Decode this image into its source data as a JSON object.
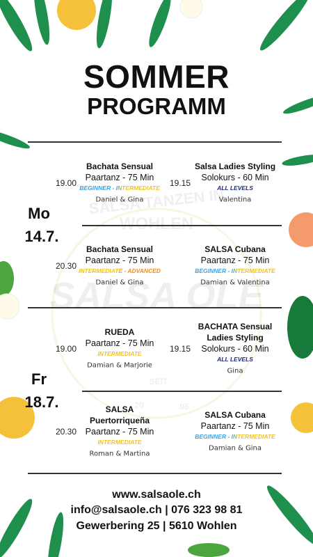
{
  "header": {
    "title": "SOMMER",
    "subtitle": "PROGRAMM"
  },
  "watermark": {
    "top": "SALSA TANZEN IN",
    "middle": "WOHLEN",
    "brand": "SALSA OLE",
    "since": "SEIT",
    "year_left": "20",
    "year_right": "06"
  },
  "schedule": {
    "days": [
      {
        "day": "Mo",
        "date": "14.7.",
        "rows": [
          {
            "slots": [
              {
                "time": "19.00",
                "title": [
                  "Bachata Sensual"
                ],
                "format": "Paartanz - 75 Min",
                "level": "BEGINNER - INTERMEDIATE",
                "level_color": [
                  "#3a9fe3",
                  "#f2c21b"
                ],
                "teachers": "Daniel & Gina"
              },
              {
                "time": "19.15",
                "title": [
                  "Salsa Ladies Styling"
                ],
                "format": "Solokurs - 60 Min",
                "level": "ALL LEVELS",
                "level_color": [
                  "#1b2a7a",
                  "#1b2a7a"
                ],
                "teachers": "Valentina"
              }
            ]
          },
          {
            "slots": [
              {
                "time": "20.30",
                "title": [
                  "Bachata Sensual"
                ],
                "format": "Paartanz - 75 Min",
                "level": "INTERMEDIATE - ADVANCED",
                "level_color": [
                  "#f2c21b",
                  "#f08a1c"
                ],
                "teachers": "Daniel & Gina"
              },
              {
                "time": null,
                "title": [
                  "SALSA Cubana"
                ],
                "format": "Paartanz - 75 Min",
                "level": "BEGINNER - INTERMEDIATE",
                "level_color": [
                  "#3a9fe3",
                  "#f2c21b"
                ],
                "teachers": "Damian & Valentina"
              }
            ]
          }
        ]
      },
      {
        "day": "Fr",
        "date": "18.7.",
        "rows": [
          {
            "slots": [
              {
                "time": "19.00",
                "title": [
                  "RUEDA"
                ],
                "format": "Paartanz - 75 Min",
                "level": "INTERMEDIATE",
                "level_color": [
                  "#f2c21b",
                  "#f2c21b"
                ],
                "teachers": "Damian & Marjorie"
              },
              {
                "time": "19.15",
                "title": [
                  "BACHATA Sensual",
                  "Ladies Styling"
                ],
                "format": "Solokurs - 60 Min",
                "level": "ALL LEVELS",
                "level_color": [
                  "#1b2a7a",
                  "#1b2a7a"
                ],
                "teachers": "Gina"
              }
            ]
          },
          {
            "slots": [
              {
                "time": "20.30",
                "title": [
                  "SALSA",
                  "Puertorriqueña"
                ],
                "format": "Paartanz - 75 Min",
                "level": "INTERMEDIATE",
                "level_color": [
                  "#f2c21b",
                  "#f2c21b"
                ],
                "teachers": "Roman & Martina"
              },
              {
                "time": null,
                "title": [
                  "SALSA Cubana"
                ],
                "format": "Paartanz - 75 Min",
                "level": "BEGINNER - INTERMEDIATE",
                "level_color": [
                  "#3a9fe3",
                  "#f2c21b"
                ],
                "teachers": "Damian & Gina"
              }
            ]
          }
        ]
      }
    ]
  },
  "footer": {
    "website": "www.salsaole.ch",
    "contact": "info@salsaole.ch | 076 323 98 81",
    "address": "Gewerbering 25 | 5610 Wohlen"
  }
}
